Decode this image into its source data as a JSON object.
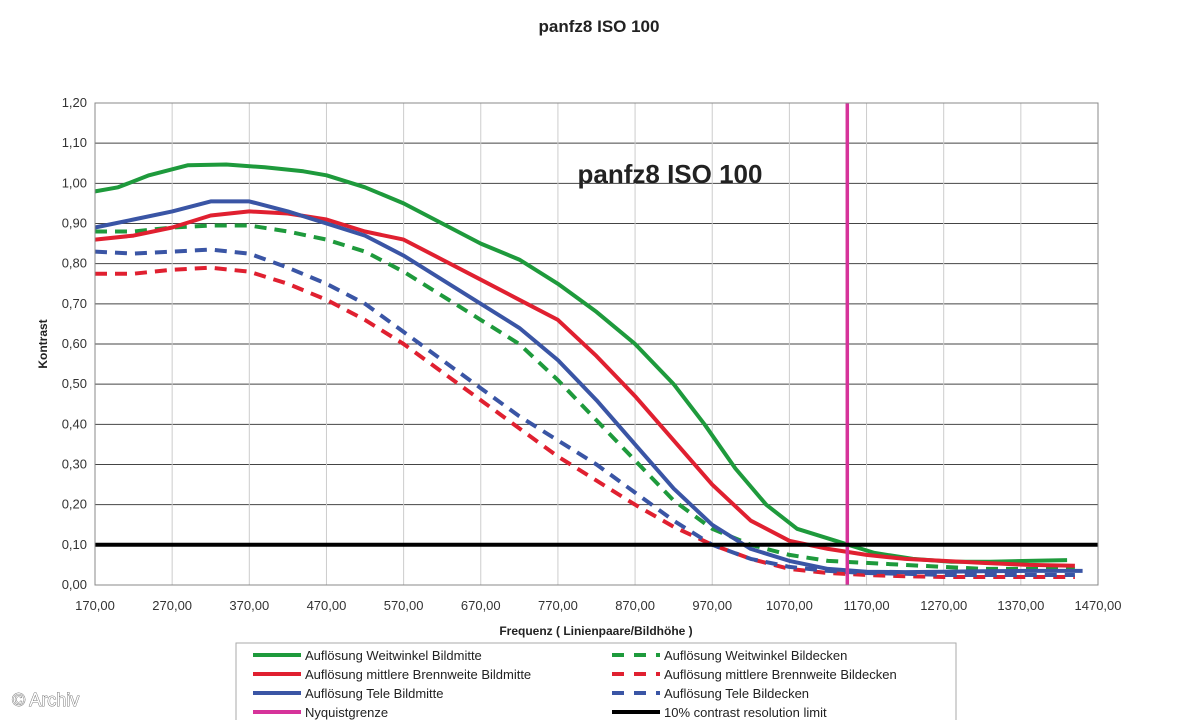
{
  "chart_data": {
    "type": "line",
    "title": "panfz8 ISO 100",
    "inner_title": "panfz8 ISO 100",
    "xlabel": "Frequenz ( Linienpaare/Bildhöhe )",
    "ylabel": "Kontrast",
    "xlim": [
      170,
      1470
    ],
    "ylim": [
      0,
      1.2
    ],
    "x_ticks": [
      "170,00",
      "270,00",
      "370,00",
      "470,00",
      "570,00",
      "670,00",
      "770,00",
      "870,00",
      "970,00",
      "1070,00",
      "1170,00",
      "1270,00",
      "1370,00",
      "1470,00"
    ],
    "y_ticks": [
      "0,00",
      "0,10",
      "0,20",
      "0,30",
      "0,40",
      "0,50",
      "0,60",
      "0,70",
      "0,80",
      "0,90",
      "1,00",
      "1,10",
      "1,20"
    ],
    "grid": true,
    "series": [
      {
        "name": "Auflösung Weitwinkel Bildmitte",
        "color": "#1e9a3c",
        "dash": "solid",
        "points": [
          [
            170,
            0.98
          ],
          [
            200,
            0.99
          ],
          [
            240,
            1.02
          ],
          [
            290,
            1.045
          ],
          [
            340,
            1.047
          ],
          [
            390,
            1.04
          ],
          [
            440,
            1.03
          ],
          [
            470,
            1.02
          ],
          [
            520,
            0.99
          ],
          [
            570,
            0.95
          ],
          [
            620,
            0.9
          ],
          [
            670,
            0.85
          ],
          [
            720,
            0.81
          ],
          [
            770,
            0.75
          ],
          [
            820,
            0.68
          ],
          [
            870,
            0.6
          ],
          [
            920,
            0.5
          ],
          [
            960,
            0.4
          ],
          [
            1000,
            0.29
          ],
          [
            1040,
            0.2
          ],
          [
            1080,
            0.14
          ],
          [
            1130,
            0.11
          ],
          [
            1180,
            0.08
          ],
          [
            1230,
            0.065
          ],
          [
            1280,
            0.058
          ],
          [
            1330,
            0.058
          ],
          [
            1380,
            0.06
          ],
          [
            1430,
            0.062
          ]
        ]
      },
      {
        "name": "Auflösung Weitwinkel Bildecken",
        "color": "#1e9a3c",
        "dash": "dashed",
        "points": [
          [
            170,
            0.88
          ],
          [
            220,
            0.88
          ],
          [
            270,
            0.89
          ],
          [
            320,
            0.895
          ],
          [
            370,
            0.895
          ],
          [
            420,
            0.88
          ],
          [
            470,
            0.86
          ],
          [
            520,
            0.83
          ],
          [
            570,
            0.78
          ],
          [
            620,
            0.72
          ],
          [
            670,
            0.66
          ],
          [
            720,
            0.6
          ],
          [
            770,
            0.51
          ],
          [
            820,
            0.41
          ],
          [
            870,
            0.31
          ],
          [
            920,
            0.21
          ],
          [
            970,
            0.14
          ],
          [
            1020,
            0.1
          ],
          [
            1070,
            0.075
          ],
          [
            1120,
            0.06
          ],
          [
            1170,
            0.055
          ],
          [
            1220,
            0.05
          ],
          [
            1270,
            0.045
          ],
          [
            1320,
            0.04
          ],
          [
            1380,
            0.04
          ],
          [
            1440,
            0.04
          ]
        ]
      },
      {
        "name": "Auflösung mittlere Brennweite Bildmitte",
        "color": "#e02030",
        "dash": "solid",
        "points": [
          [
            170,
            0.86
          ],
          [
            220,
            0.87
          ],
          [
            270,
            0.89
          ],
          [
            320,
            0.92
          ],
          [
            370,
            0.93
          ],
          [
            420,
            0.925
          ],
          [
            470,
            0.91
          ],
          [
            520,
            0.88
          ],
          [
            570,
            0.86
          ],
          [
            620,
            0.81
          ],
          [
            670,
            0.76
          ],
          [
            720,
            0.71
          ],
          [
            770,
            0.66
          ],
          [
            820,
            0.57
          ],
          [
            870,
            0.47
          ],
          [
            920,
            0.36
          ],
          [
            970,
            0.25
          ],
          [
            1020,
            0.16
          ],
          [
            1070,
            0.11
          ],
          [
            1120,
            0.09
          ],
          [
            1170,
            0.075
          ],
          [
            1220,
            0.065
          ],
          [
            1270,
            0.06
          ],
          [
            1320,
            0.055
          ],
          [
            1380,
            0.05
          ],
          [
            1440,
            0.048
          ]
        ]
      },
      {
        "name": "Auflösung mittlere Brennweite Bildecken",
        "color": "#e02030",
        "dash": "dashed",
        "points": [
          [
            170,
            0.775
          ],
          [
            220,
            0.775
          ],
          [
            270,
            0.785
          ],
          [
            320,
            0.79
          ],
          [
            370,
            0.78
          ],
          [
            420,
            0.75
          ],
          [
            470,
            0.71
          ],
          [
            520,
            0.66
          ],
          [
            570,
            0.6
          ],
          [
            620,
            0.53
          ],
          [
            670,
            0.46
          ],
          [
            720,
            0.39
          ],
          [
            770,
            0.32
          ],
          [
            820,
            0.26
          ],
          [
            870,
            0.2
          ],
          [
            920,
            0.145
          ],
          [
            970,
            0.1
          ],
          [
            1020,
            0.065
          ],
          [
            1070,
            0.04
          ],
          [
            1120,
            0.03
          ],
          [
            1170,
            0.025
          ],
          [
            1220,
            0.022
          ],
          [
            1270,
            0.02
          ],
          [
            1320,
            0.02
          ],
          [
            1380,
            0.02
          ],
          [
            1440,
            0.02
          ]
        ]
      },
      {
        "name": "Auflösung Tele Bildmitte",
        "color": "#3a55a5",
        "dash": "solid",
        "points": [
          [
            170,
            0.89
          ],
          [
            220,
            0.91
          ],
          [
            270,
            0.93
          ],
          [
            320,
            0.955
          ],
          [
            370,
            0.955
          ],
          [
            420,
            0.93
          ],
          [
            470,
            0.9
          ],
          [
            520,
            0.87
          ],
          [
            570,
            0.82
          ],
          [
            620,
            0.76
          ],
          [
            670,
            0.7
          ],
          [
            720,
            0.64
          ],
          [
            770,
            0.56
          ],
          [
            820,
            0.46
          ],
          [
            870,
            0.35
          ],
          [
            920,
            0.24
          ],
          [
            970,
            0.15
          ],
          [
            1020,
            0.09
          ],
          [
            1070,
            0.06
          ],
          [
            1120,
            0.04
          ],
          [
            1170,
            0.033
          ],
          [
            1220,
            0.032
          ],
          [
            1270,
            0.033
          ],
          [
            1320,
            0.034
          ],
          [
            1380,
            0.035
          ],
          [
            1450,
            0.035
          ]
        ]
      },
      {
        "name": "Auflösung Tele Bildecken",
        "color": "#3a55a5",
        "dash": "dashed",
        "points": [
          [
            170,
            0.83
          ],
          [
            220,
            0.825
          ],
          [
            270,
            0.83
          ],
          [
            320,
            0.835
          ],
          [
            370,
            0.825
          ],
          [
            420,
            0.79
          ],
          [
            470,
            0.75
          ],
          [
            520,
            0.7
          ],
          [
            570,
            0.63
          ],
          [
            620,
            0.56
          ],
          [
            670,
            0.49
          ],
          [
            720,
            0.42
          ],
          [
            770,
            0.36
          ],
          [
            820,
            0.3
          ],
          [
            870,
            0.23
          ],
          [
            920,
            0.16
          ],
          [
            970,
            0.1
          ],
          [
            1020,
            0.065
          ],
          [
            1070,
            0.045
          ],
          [
            1120,
            0.035
          ],
          [
            1170,
            0.03
          ],
          [
            1220,
            0.028
          ],
          [
            1270,
            0.025
          ],
          [
            1320,
            0.025
          ],
          [
            1380,
            0.025
          ],
          [
            1440,
            0.025
          ]
        ]
      },
      {
        "name": "Nyquistgrenze",
        "color": "#d6339a",
        "dash": "solid",
        "points": [
          [
            1145,
            0
          ],
          [
            1145,
            1.2
          ]
        ]
      },
      {
        "name": "10% contrast resolution limit",
        "color": "#000000",
        "dash": "solid",
        "points": [
          [
            170,
            0.1
          ],
          [
            1470,
            0.1
          ]
        ]
      }
    ],
    "legend": {
      "placement": "bottom",
      "entries": [
        {
          "name": "Auflösung Weitwinkel Bildmitte",
          "color": "#1e9a3c",
          "dash": "solid"
        },
        {
          "name": "Auflösung Weitwinkel Bildecken",
          "color": "#1e9a3c",
          "dash": "dashed"
        },
        {
          "name": "Auflösung mittlere Brennweite Bildmitte",
          "color": "#e02030",
          "dash": "solid"
        },
        {
          "name": "Auflösung mittlere Brennweite Bildecken",
          "color": "#e02030",
          "dash": "dashed"
        },
        {
          "name": "Auflösung Tele Bildmitte",
          "color": "#3a55a5",
          "dash": "solid"
        },
        {
          "name": "Auflösung Tele Bildecken",
          "color": "#3a55a5",
          "dash": "dashed"
        },
        {
          "name": "Nyquistgrenze",
          "color": "#d6339a",
          "dash": "solid"
        },
        {
          "name": "10% contrast resolution limit",
          "color": "#000000",
          "dash": "solid"
        }
      ]
    }
  },
  "watermark": "© Archiv"
}
